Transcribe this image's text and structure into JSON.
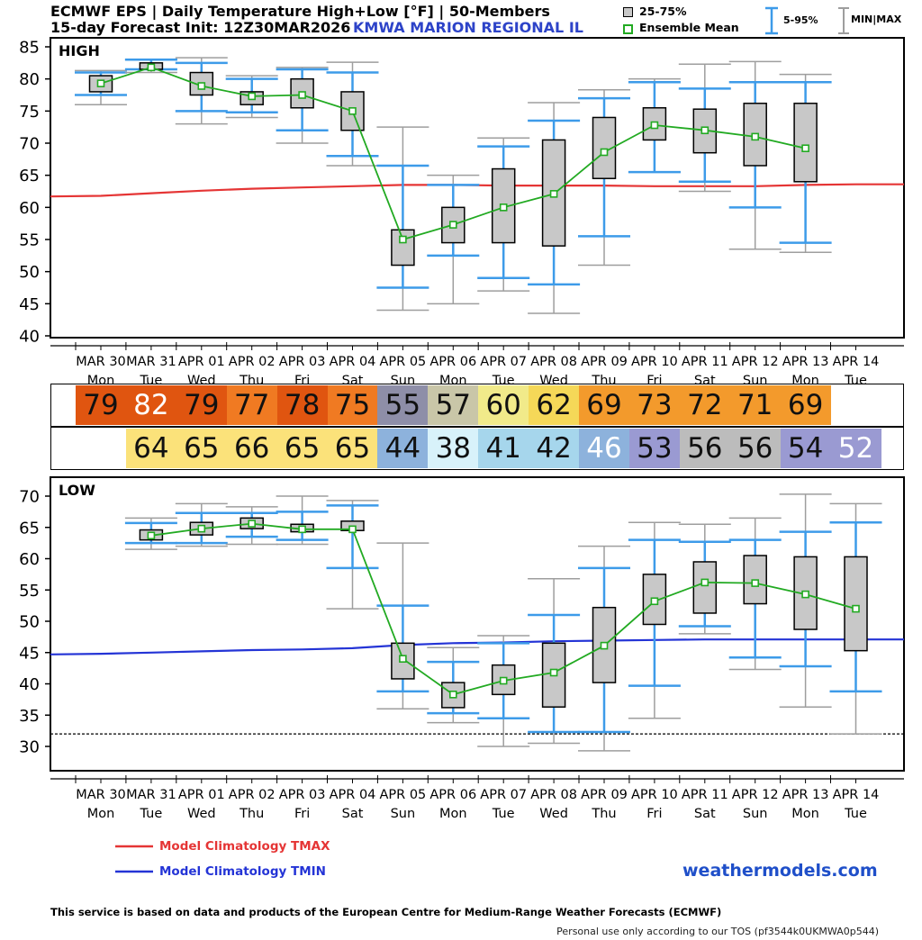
{
  "header": {
    "title_line1": "ECMWF EPS | Daily Temperature High+Low [°F] | 50-Members",
    "title_line2": "15-day Forecast Init: 12Z30MAR2026",
    "station": "KMWA  MARION REGIONAL IL"
  },
  "legend": {
    "box_label": "25-75%",
    "mean_label": "Ensemble Mean",
    "whisker_label": "5-95%",
    "minmax_label": "MIN|MAX",
    "clim_tmax": "Model Climatology TMAX",
    "clim_tmin": "Model Climatology TMIN"
  },
  "colors": {
    "box_fill": "#c8c8c8",
    "whisker": "#3d9be9",
    "minmax": "#9e9e9e",
    "mean": "#22aa22",
    "clim_tmax": "#e53535",
    "clim_tmin": "#2434d6",
    "station": "#2d43c8",
    "brand": "#1f4fc9"
  },
  "brand": "weathermodels.com",
  "footer": {
    "line1": "This service is based on data and products of the European Centre for Medium-Range Weather Forecasts (ECMWF)",
    "line2": "Personal use only according to our TOS (pf3544k0UKMWA0p544)"
  },
  "chart_data": [
    {
      "type": "box",
      "panel_label": "HIGH",
      "ylim": [
        40,
        85
      ],
      "yticks": [
        40,
        45,
        50,
        55,
        60,
        65,
        70,
        75,
        80,
        85
      ],
      "x_dates": [
        "MAR 30",
        "MAR 31",
        "APR 01",
        "APR 02",
        "APR 03",
        "APR 04",
        "APR 05",
        "APR 06",
        "APR 07",
        "APR 08",
        "APR 09",
        "APR 10",
        "APR 11",
        "APR 12",
        "APR 13",
        "APR 14"
      ],
      "x_days": [
        "Mon",
        "Tue",
        "Wed",
        "Thu",
        "Fri",
        "Sat",
        "Sun",
        "Mon",
        "Tue",
        "Wed",
        "Thu",
        "Fri",
        "Sat",
        "Sun",
        "Mon",
        "Tue"
      ],
      "series": [
        {
          "name": "min",
          "values": [
            76,
            81,
            73,
            74,
            70,
            66.5,
            44,
            45,
            47,
            43.5,
            51,
            65.5,
            62.5,
            53.5,
            53,
            null
          ]
        },
        {
          "name": "p5",
          "values": [
            77.5,
            81.5,
            75,
            74.8,
            72,
            68,
            47.5,
            52.5,
            49,
            48,
            55.5,
            65.5,
            64,
            60,
            54.5,
            null
          ]
        },
        {
          "name": "p25",
          "values": [
            78,
            81.5,
            77.5,
            76,
            75.5,
            72,
            51,
            54.5,
            54.5,
            54,
            64.5,
            70.5,
            68.5,
            66.5,
            64,
            null
          ]
        },
        {
          "name": "mean",
          "values": [
            79.3,
            81.8,
            78.9,
            77.3,
            77.5,
            75,
            55,
            57.3,
            60,
            62.1,
            68.6,
            72.8,
            72,
            71,
            69.2,
            null
          ]
        },
        {
          "name": "p75",
          "values": [
            80.5,
            82.5,
            81,
            78,
            80,
            78,
            56.5,
            60,
            66,
            70.5,
            74,
            75.5,
            75.3,
            76.2,
            76.2,
            null
          ]
        },
        {
          "name": "p95",
          "values": [
            81,
            83,
            82.5,
            80,
            81.5,
            81,
            66.5,
            63.5,
            69.5,
            73.5,
            77,
            79.5,
            78.5,
            79.5,
            79.5,
            null
          ]
        },
        {
          "name": "max",
          "values": [
            81.3,
            83,
            83.3,
            80.5,
            81.8,
            82.6,
            72.5,
            65,
            70.8,
            76.3,
            78.3,
            80,
            82.3,
            82.7,
            80.7,
            null
          ]
        },
        {
          "name": "Model Climatology TMAX",
          "values": [
            61.8,
            62.2,
            62.6,
            62.9,
            63.1,
            63.3,
            63.5,
            63.5,
            63.4,
            63.4,
            63.4,
            63.3,
            63.3,
            63.3,
            63.5,
            63.6
          ]
        }
      ],
      "daily_values": [
        79,
        82,
        79,
        77,
        78,
        75,
        55,
        57,
        60,
        62,
        69,
        73,
        72,
        71,
        69,
        null
      ]
    },
    {
      "type": "box",
      "panel_label": "LOW",
      "ylim": [
        25,
        71
      ],
      "yticks": [
        30,
        35,
        40,
        45,
        50,
        55,
        60,
        65,
        70
      ],
      "reference_line": 32,
      "x_dates": [
        "MAR 30",
        "MAR 31",
        "APR 01",
        "APR 02",
        "APR 03",
        "APR 04",
        "APR 05",
        "APR 06",
        "APR 07",
        "APR 08",
        "APR 09",
        "APR 10",
        "APR 11",
        "APR 12",
        "APR 13",
        "APR 14"
      ],
      "x_days": [
        "Mon",
        "Tue",
        "Wed",
        "Thu",
        "Fri",
        "Sat",
        "Sun",
        "Mon",
        "Tue",
        "Wed",
        "Thu",
        "Fri",
        "Sat",
        "Sun",
        "Mon",
        "Tue"
      ],
      "series": [
        {
          "name": "min",
          "values": [
            null,
            61.5,
            62,
            62.3,
            62.3,
            52,
            36,
            33.8,
            30,
            30.5,
            29.3,
            34.5,
            48,
            42.3,
            36.3,
            32
          ]
        },
        {
          "name": "p5",
          "values": [
            null,
            62.5,
            62.5,
            63.5,
            63,
            58.5,
            38.8,
            35.3,
            34.5,
            32.3,
            32.3,
            39.7,
            49.2,
            44.2,
            42.8,
            38.8
          ]
        },
        {
          "name": "p25",
          "values": [
            null,
            63,
            63.8,
            64.8,
            64.3,
            64.5,
            40.8,
            36.2,
            38.3,
            36.3,
            40.2,
            49.5,
            51.3,
            52.8,
            48.7,
            45.3
          ]
        },
        {
          "name": "mean",
          "values": [
            null,
            63.7,
            64.8,
            65.6,
            64.7,
            64.7,
            44,
            38.3,
            40.5,
            41.8,
            46.1,
            53.2,
            56.2,
            56.1,
            54.3,
            52
          ]
        },
        {
          "name": "p75",
          "values": [
            null,
            64.6,
            65.8,
            66.5,
            65.5,
            66,
            46.5,
            40.2,
            43,
            46.5,
            52.2,
            57.5,
            59.5,
            60.5,
            60.3,
            60.3
          ]
        },
        {
          "name": "p95",
          "values": [
            null,
            65.7,
            67.3,
            67.3,
            67.5,
            68.5,
            52.5,
            43.5,
            46.5,
            51,
            58.5,
            63,
            62.7,
            63,
            64.3,
            65.8
          ]
        },
        {
          "name": "max",
          "values": [
            null,
            66.5,
            68.8,
            68.3,
            70,
            69.3,
            62.5,
            45.8,
            47.7,
            56.8,
            62,
            65.8,
            65.5,
            66.5,
            70.3,
            68.8
          ]
        },
        {
          "name": "Model Climatology TMIN",
          "values": [
            44.8,
            45,
            45.2,
            45.4,
            45.5,
            45.7,
            46.2,
            46.5,
            46.6,
            46.8,
            46.9,
            47,
            47.1,
            47.1,
            47.1,
            47.1
          ]
        }
      ],
      "daily_values": [
        null,
        64,
        65,
        66,
        65,
        65,
        44,
        38,
        41,
        42,
        46,
        53,
        56,
        56,
        54,
        52
      ]
    }
  ]
}
